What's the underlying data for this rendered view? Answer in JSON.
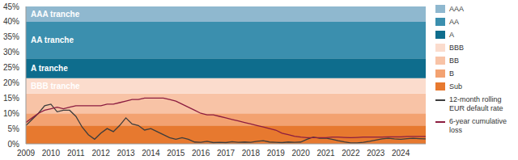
{
  "chart_data": {
    "type": "area",
    "stacked": true,
    "grid": false,
    "legend": "right",
    "x": [
      2009,
      2009.25,
      2009.5,
      2009.75,
      2010,
      2010.25,
      2010.5,
      2010.75,
      2011,
      2011.25,
      2011.5,
      2011.75,
      2012,
      2012.25,
      2012.5,
      2012.75,
      2013,
      2013.25,
      2013.5,
      2013.75,
      2014,
      2014.25,
      2014.5,
      2014.75,
      2015,
      2015.25,
      2015.5,
      2015.75,
      2016,
      2016.25,
      2016.5,
      2016.75,
      2017,
      2017.25,
      2017.5,
      2017.75,
      2018,
      2018.25,
      2018.5,
      2018.75,
      2019,
      2019.25,
      2019.5,
      2019.75,
      2020,
      2020.25,
      2020.5,
      2020.75,
      2021,
      2021.25,
      2021.5,
      2021.75,
      2022,
      2022.25,
      2022.5,
      2022.75,
      2023,
      2023.25,
      2023.5,
      2023.75,
      2024,
      2024.25,
      2024.5,
      2024.75,
      2025
    ],
    "xlim": [
      2009,
      2025
    ],
    "xticks": [
      2009,
      2010,
      2011,
      2012,
      2013,
      2014,
      2015,
      2016,
      2017,
      2018,
      2019,
      2020,
      2021,
      2022,
      2023,
      2024
    ],
    "ylim": [
      0,
      45
    ],
    "yticks": [
      {
        "value": 0,
        "label": "0%"
      },
      {
        "value": 5,
        "label": "5%"
      },
      {
        "value": 10,
        "label": "10%"
      },
      {
        "value": 15,
        "label": "15%"
      },
      {
        "value": 20,
        "label": "20%"
      },
      {
        "value": 25,
        "label": "25%"
      },
      {
        "value": 30,
        "label": "30%"
      },
      {
        "value": 35,
        "label": "35%"
      },
      {
        "value": 40,
        "label": "40%"
      },
      {
        "value": 45,
        "label": "45%"
      }
    ],
    "series": [
      {
        "name": "AAA",
        "type": "area",
        "color": "#8fb8cf",
        "values": [
          5,
          5,
          5,
          5,
          5,
          5,
          5,
          5,
          5,
          5,
          5,
          5,
          5,
          5,
          5,
          5,
          5,
          5,
          5,
          5,
          5,
          5,
          5,
          5,
          5,
          5,
          5,
          5,
          5,
          5,
          5,
          5,
          5,
          5,
          5,
          5,
          5,
          5,
          5,
          5,
          5,
          5,
          5,
          5,
          5,
          5,
          5,
          5,
          5,
          5,
          5,
          5,
          5,
          5,
          5,
          5,
          5,
          5,
          5,
          5,
          5,
          5,
          5,
          5,
          5
        ]
      },
      {
        "name": "AA",
        "type": "area",
        "color": "#3b8fae",
        "values": [
          12,
          12,
          12,
          12,
          12,
          12,
          12,
          12,
          12,
          12,
          12,
          12,
          12,
          12,
          12,
          12,
          12,
          12,
          12,
          12,
          12,
          12,
          12,
          12,
          12,
          12,
          12,
          12,
          12,
          12,
          12,
          12,
          12,
          12,
          12,
          12,
          12,
          12,
          12,
          12,
          12,
          12,
          12,
          12,
          12,
          12,
          12,
          12,
          12,
          12,
          12,
          12,
          12,
          12,
          12,
          12,
          12,
          12,
          12,
          12,
          12,
          12,
          12,
          12,
          12
        ]
      },
      {
        "name": "A",
        "type": "area",
        "color": "#0e6d8d",
        "values": [
          6.5,
          6.5,
          6.5,
          6.5,
          6.5,
          6.5,
          6.5,
          6.5,
          6.5,
          6.5,
          6.5,
          6.5,
          6.5,
          6.5,
          6.5,
          6.5,
          6.5,
          6.5,
          6.5,
          6.5,
          6.5,
          6.5,
          6.5,
          6.5,
          6.5,
          6.5,
          6.5,
          6.5,
          6.5,
          6.5,
          6.5,
          6.5,
          6.5,
          6.5,
          6.5,
          6.5,
          6.5,
          6.5,
          6.5,
          6.5,
          6.5,
          6.5,
          6.5,
          6.5,
          6.5,
          6.5,
          6.5,
          6.5,
          6.5,
          6.5,
          6.5,
          6.5,
          6.5,
          6.5,
          6.5,
          6.5,
          6.5,
          6.5,
          6.5,
          6.5,
          6.5,
          6.5,
          6.5,
          6.5,
          6.5
        ]
      },
      {
        "name": "BBB",
        "type": "area",
        "color": "#fbdccd",
        "values": [
          5,
          5,
          5,
          5,
          5,
          5,
          5,
          5,
          5,
          5,
          5,
          5,
          5,
          5,
          5,
          5,
          5,
          5,
          5,
          5,
          5,
          5,
          5,
          5,
          5,
          5,
          5,
          5,
          5,
          5,
          5,
          5,
          5,
          5,
          5,
          5,
          5,
          5,
          5,
          5,
          5,
          5,
          5,
          5,
          5,
          5,
          5,
          5,
          5,
          5,
          5,
          5,
          5,
          5,
          5,
          5,
          5,
          5,
          5,
          5,
          5,
          5,
          5,
          5,
          5
        ]
      },
      {
        "name": "BB",
        "type": "area",
        "color": "#f8c3a6",
        "values": [
          6.5,
          6.5,
          6.5,
          6.5,
          6.5,
          6.5,
          6.5,
          6.5,
          6.5,
          6.5,
          6.5,
          6.5,
          6.5,
          6.5,
          6.5,
          6.5,
          6.5,
          6.5,
          6.5,
          6.5,
          6.5,
          6.5,
          6.5,
          6.5,
          6.5,
          6.5,
          6.5,
          6.5,
          6.5,
          6.5,
          6.5,
          6.5,
          6.5,
          6.5,
          6.5,
          6.5,
          6.5,
          6.5,
          6.5,
          6.5,
          6.5,
          6.5,
          6.5,
          6.5,
          6.5,
          6.5,
          6.5,
          6.5,
          6.5,
          6.5,
          6.5,
          6.5,
          6.5,
          6.5,
          6.5,
          6.5,
          6.5,
          6.5,
          6.5,
          6.5,
          6.5,
          6.5,
          6.5,
          6.5,
          6.5
        ]
      },
      {
        "name": "B",
        "type": "area",
        "color": "#f3a271",
        "values": [
          4,
          4,
          4,
          4,
          4,
          4,
          4,
          4,
          4,
          4,
          4,
          4,
          4,
          4,
          4,
          4,
          4,
          4,
          4,
          4,
          4,
          4,
          4,
          4,
          4,
          4,
          4,
          4,
          4,
          4,
          4,
          4,
          4,
          4,
          4,
          4,
          4,
          4,
          4,
          4,
          4,
          4,
          4,
          4,
          4,
          4,
          4,
          4,
          4,
          4,
          4,
          4,
          4,
          4,
          4,
          4,
          4,
          4,
          4,
          4,
          4,
          4,
          4,
          4,
          4
        ]
      },
      {
        "name": "Sub",
        "type": "area",
        "color": "#e7792f",
        "values": [
          6,
          6,
          6,
          6,
          6,
          6,
          6,
          6,
          6,
          6,
          6,
          6,
          6,
          6,
          6,
          6,
          6,
          6,
          6,
          6,
          6,
          6,
          6,
          6,
          6,
          6,
          6,
          6,
          6,
          6,
          6,
          6,
          6,
          6,
          6,
          6,
          6,
          6,
          6,
          6,
          6,
          6,
          6,
          6,
          6,
          6,
          6,
          6,
          6,
          6,
          6,
          6,
          6,
          6,
          6,
          6,
          6,
          6,
          6,
          6,
          6,
          6,
          6,
          6,
          6
        ]
      },
      {
        "name": "12-month rolling EUR default rate",
        "type": "line",
        "color": "#3d3d3d",
        "values": [
          6,
          8,
          10,
          12.5,
          13,
          10.5,
          11,
          11,
          9,
          5.5,
          3,
          1.5,
          3.5,
          5,
          4,
          6,
          8.5,
          6.5,
          6,
          4.5,
          5,
          4,
          3,
          2,
          1.5,
          2,
          1.5,
          0.6,
          0.5,
          0.8,
          0.4,
          0.5,
          0.4,
          0.7,
          0.5,
          0.6,
          0.5,
          0.8,
          1,
          0.6,
          0.5,
          0.4,
          0.6,
          0.5,
          0.6,
          1.5,
          2.2,
          1.8,
          1.9,
          1.5,
          1,
          0.6,
          0.3,
          0.3,
          0.5,
          0.8,
          1.2,
          1.6,
          1.8,
          1.6,
          1.5,
          1.7,
          1.8,
          1.7,
          1.6
        ]
      },
      {
        "name": "6-year cumulative loss",
        "type": "line",
        "color": "#8c1d40",
        "values": [
          7,
          8.5,
          10,
          11,
          11.5,
          12,
          11.5,
          12,
          12.5,
          12.5,
          12.5,
          12.5,
          12.5,
          13,
          13,
          13.5,
          14,
          14.5,
          14.5,
          15,
          15,
          15,
          15,
          14.5,
          14,
          13,
          12,
          11,
          10,
          9.5,
          9.5,
          9,
          8.5,
          8,
          7.5,
          7,
          6.5,
          6,
          5.5,
          5,
          4.5,
          3.5,
          3,
          2.5,
          2.2,
          2,
          2,
          2,
          2,
          2.2,
          2.2,
          2.1,
          2,
          2.1,
          2.2,
          2.2,
          2.2,
          2.2,
          2.3,
          2.3,
          2.3,
          2.4,
          2.4,
          2.4,
          2.4
        ]
      }
    ],
    "annotations": [
      {
        "text": "AAA tranche",
        "series": "AAA"
      },
      {
        "text": "AA tranche",
        "series": "AA"
      },
      {
        "text": "A tranche",
        "series": "A"
      },
      {
        "text": "BBB tranche",
        "series": "BBB"
      }
    ]
  }
}
